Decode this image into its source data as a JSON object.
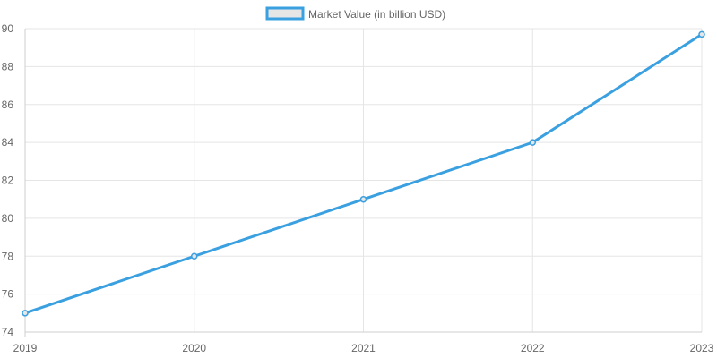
{
  "chart_data": {
    "type": "line",
    "x": [
      "2019",
      "2020",
      "2021",
      "2022",
      "2023"
    ],
    "series": [
      {
        "name": "Market Value (in billion USD)",
        "values": [
          75,
          78,
          81,
          84,
          89.7
        ],
        "color": "#3aa0e0",
        "fill": "#e6e6e6"
      }
    ],
    "ylim": [
      74,
      90
    ],
    "yticks": [
      74,
      76,
      78,
      80,
      82,
      84,
      86,
      88,
      90
    ],
    "grid": true,
    "legend_position": "top-center"
  }
}
